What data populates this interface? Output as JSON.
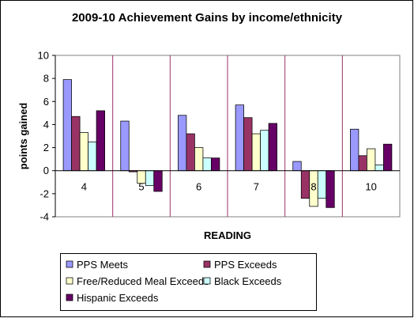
{
  "chart_data": {
    "type": "bar",
    "title": "2009-10 Achievement Gains by income/ethnicity",
    "xlabel": "READING",
    "ylabel": "points gained",
    "ylim": [
      -4,
      10
    ],
    "yticks": [
      -4,
      -2,
      0,
      2,
      4,
      6,
      8,
      10
    ],
    "grid": false,
    "legend_position": "bottom",
    "categories": [
      "4",
      "5",
      "6",
      "7",
      "8",
      "10"
    ],
    "series": [
      {
        "name": "PPS Meets",
        "color": "#9999ff",
        "values": [
          7.9,
          4.3,
          4.8,
          5.7,
          0.8,
          3.6
        ]
      },
      {
        "name": "PPS Exceeds",
        "color": "#993366",
        "values": [
          4.7,
          -0.1,
          3.2,
          4.6,
          -2.4,
          1.3
        ]
      },
      {
        "name": "Free/Reduced Meal Exceeds",
        "color": "#ffffcc",
        "values": [
          3.3,
          -1.1,
          2.0,
          3.2,
          -3.1,
          1.9
        ]
      },
      {
        "name": "Black Exceeds",
        "color": "#ccffff",
        "values": [
          2.5,
          -1.3,
          1.1,
          3.5,
          -2.4,
          0.5
        ]
      },
      {
        "name": "Hispanic Exceeds",
        "color": "#660066",
        "values": [
          5.2,
          -1.8,
          1.1,
          4.1,
          -3.2,
          2.3
        ]
      }
    ]
  }
}
